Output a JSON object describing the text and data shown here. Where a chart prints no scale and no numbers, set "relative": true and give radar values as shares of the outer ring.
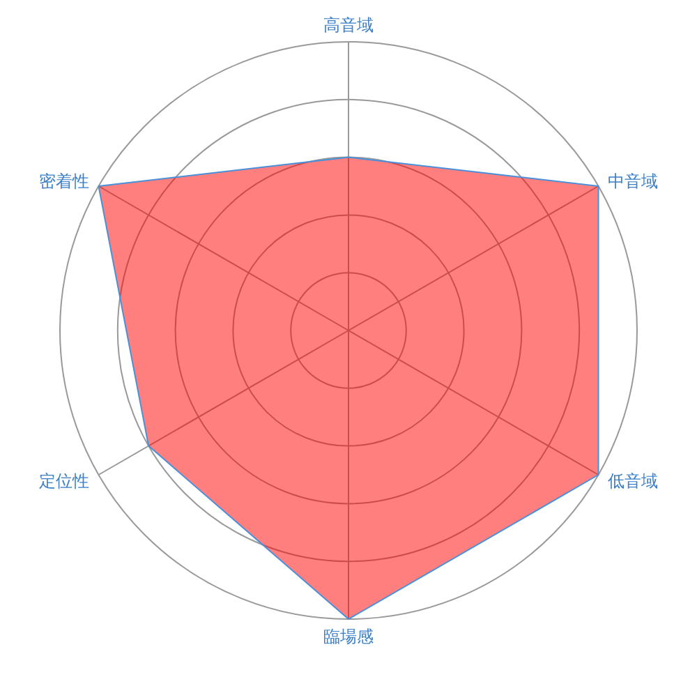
{
  "chart_data": {
    "type": "radar",
    "relative": true,
    "categories": [
      "高音域",
      "中音域",
      "低音域",
      "臨場感",
      "定位性",
      "密着性"
    ],
    "series": [
      {
        "color": "#ff0000",
        "values": [
          0.6,
          1,
          1,
          1,
          0.8,
          1
        ]
      }
    ]
  }
}
